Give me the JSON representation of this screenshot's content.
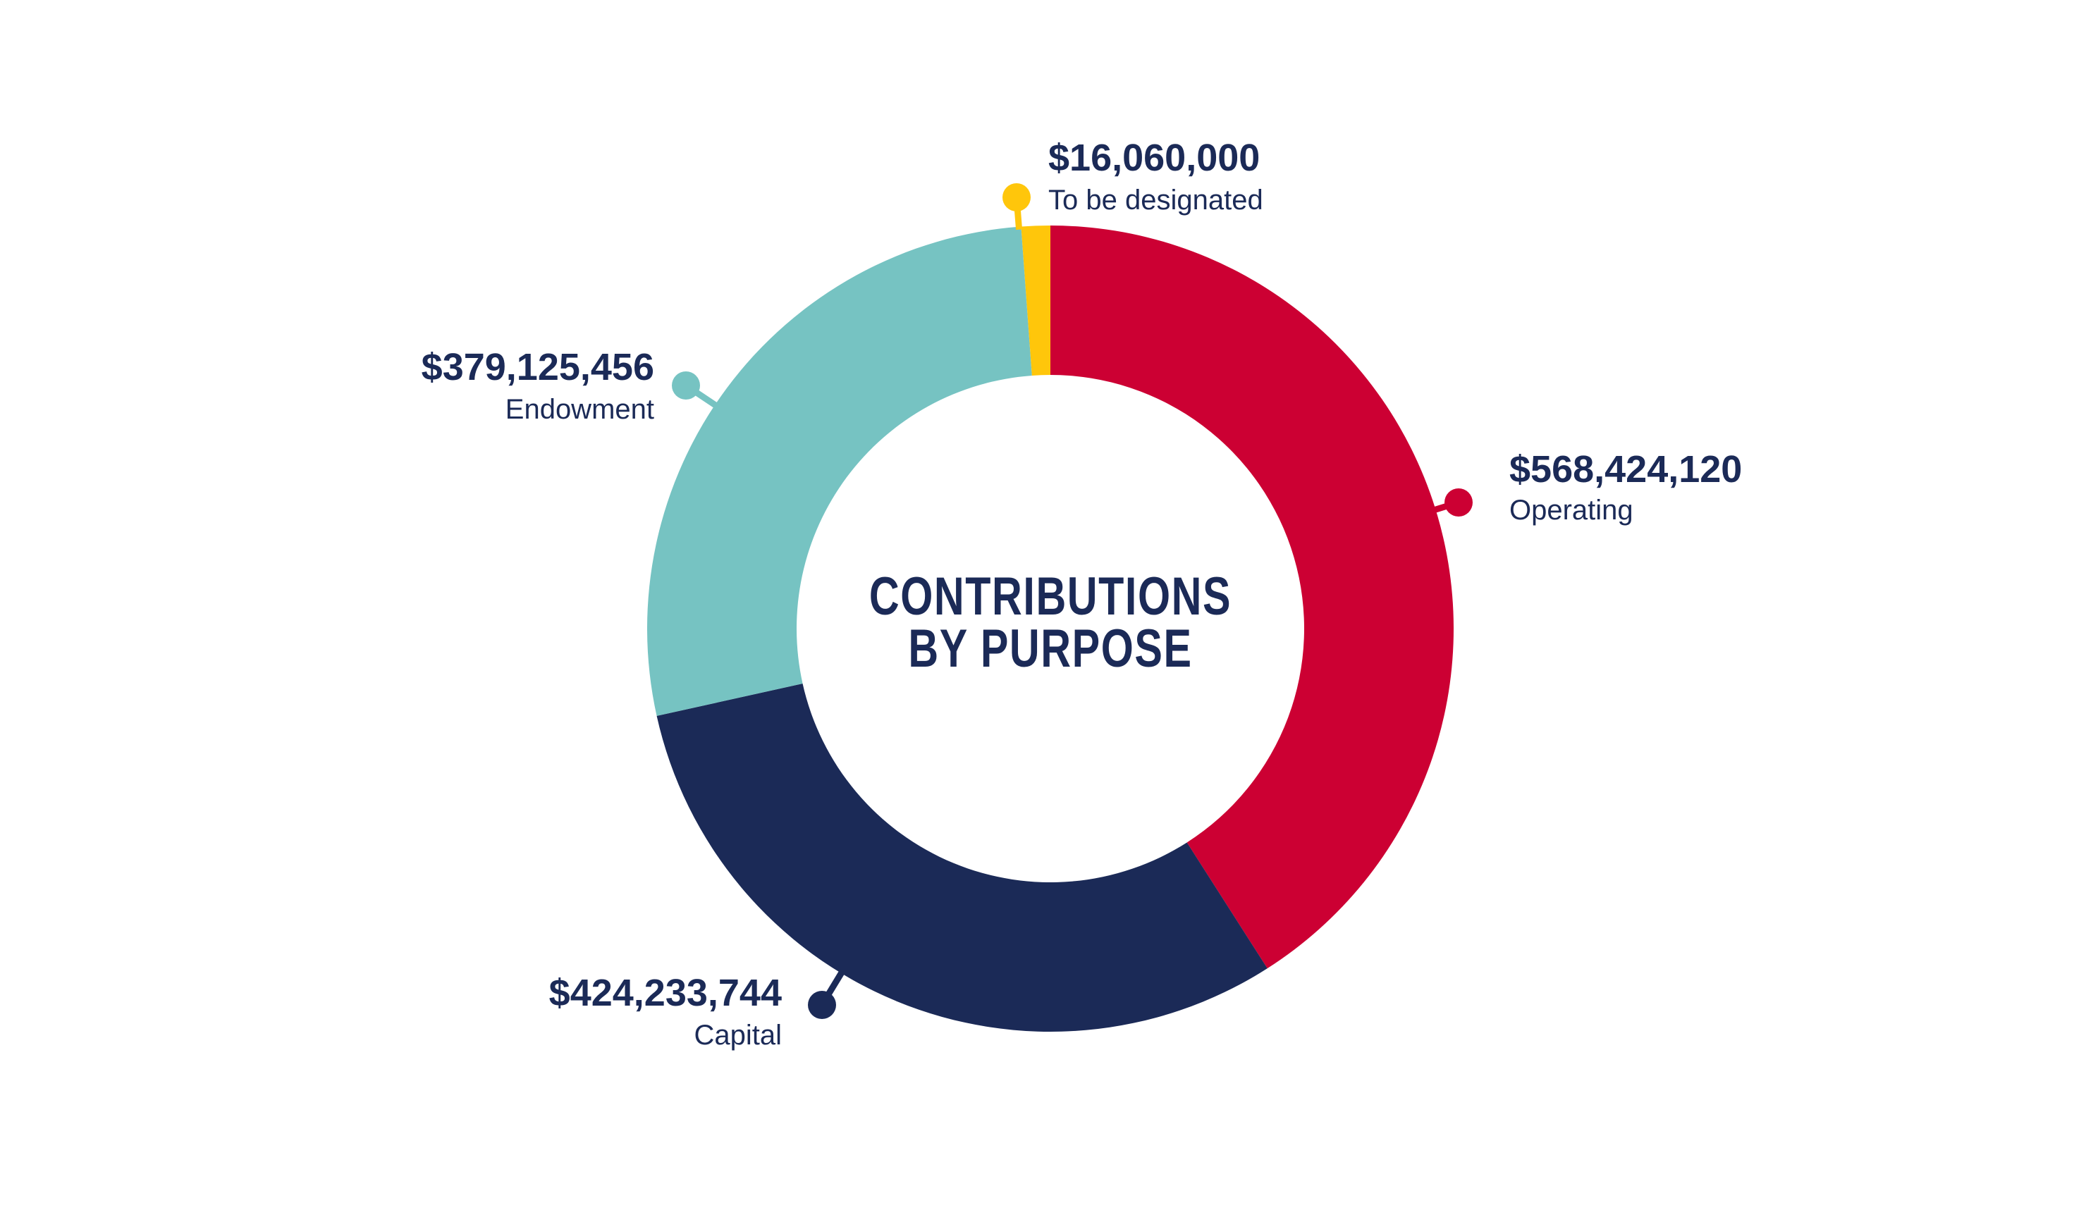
{
  "chart_data": {
    "type": "pie",
    "variant": "donut",
    "title": "CONTRIBUTIONS BY PURPOSE",
    "title_lines": [
      "CONTRIBUTIONS",
      "BY PURPOSE"
    ],
    "start": "12 o'clock, clockwise",
    "slices": [
      {
        "name": "Operating",
        "value": 568424120,
        "value_label": "$568,424,120",
        "color": "#cc0033"
      },
      {
        "name": "Capital",
        "value": 424233744,
        "value_label": "$424,233,744",
        "color": "#1b2a57"
      },
      {
        "name": "Endowment",
        "value": 379125456,
        "value_label": "$379,125,456",
        "color": "#76c3c2"
      },
      {
        "name": "To be designated",
        "value": 16060000,
        "value_label": "$16,060,000",
        "color": "#ffc60b"
      }
    ],
    "text_color": "#1b2a57",
    "legend": "none (direct labels)"
  }
}
